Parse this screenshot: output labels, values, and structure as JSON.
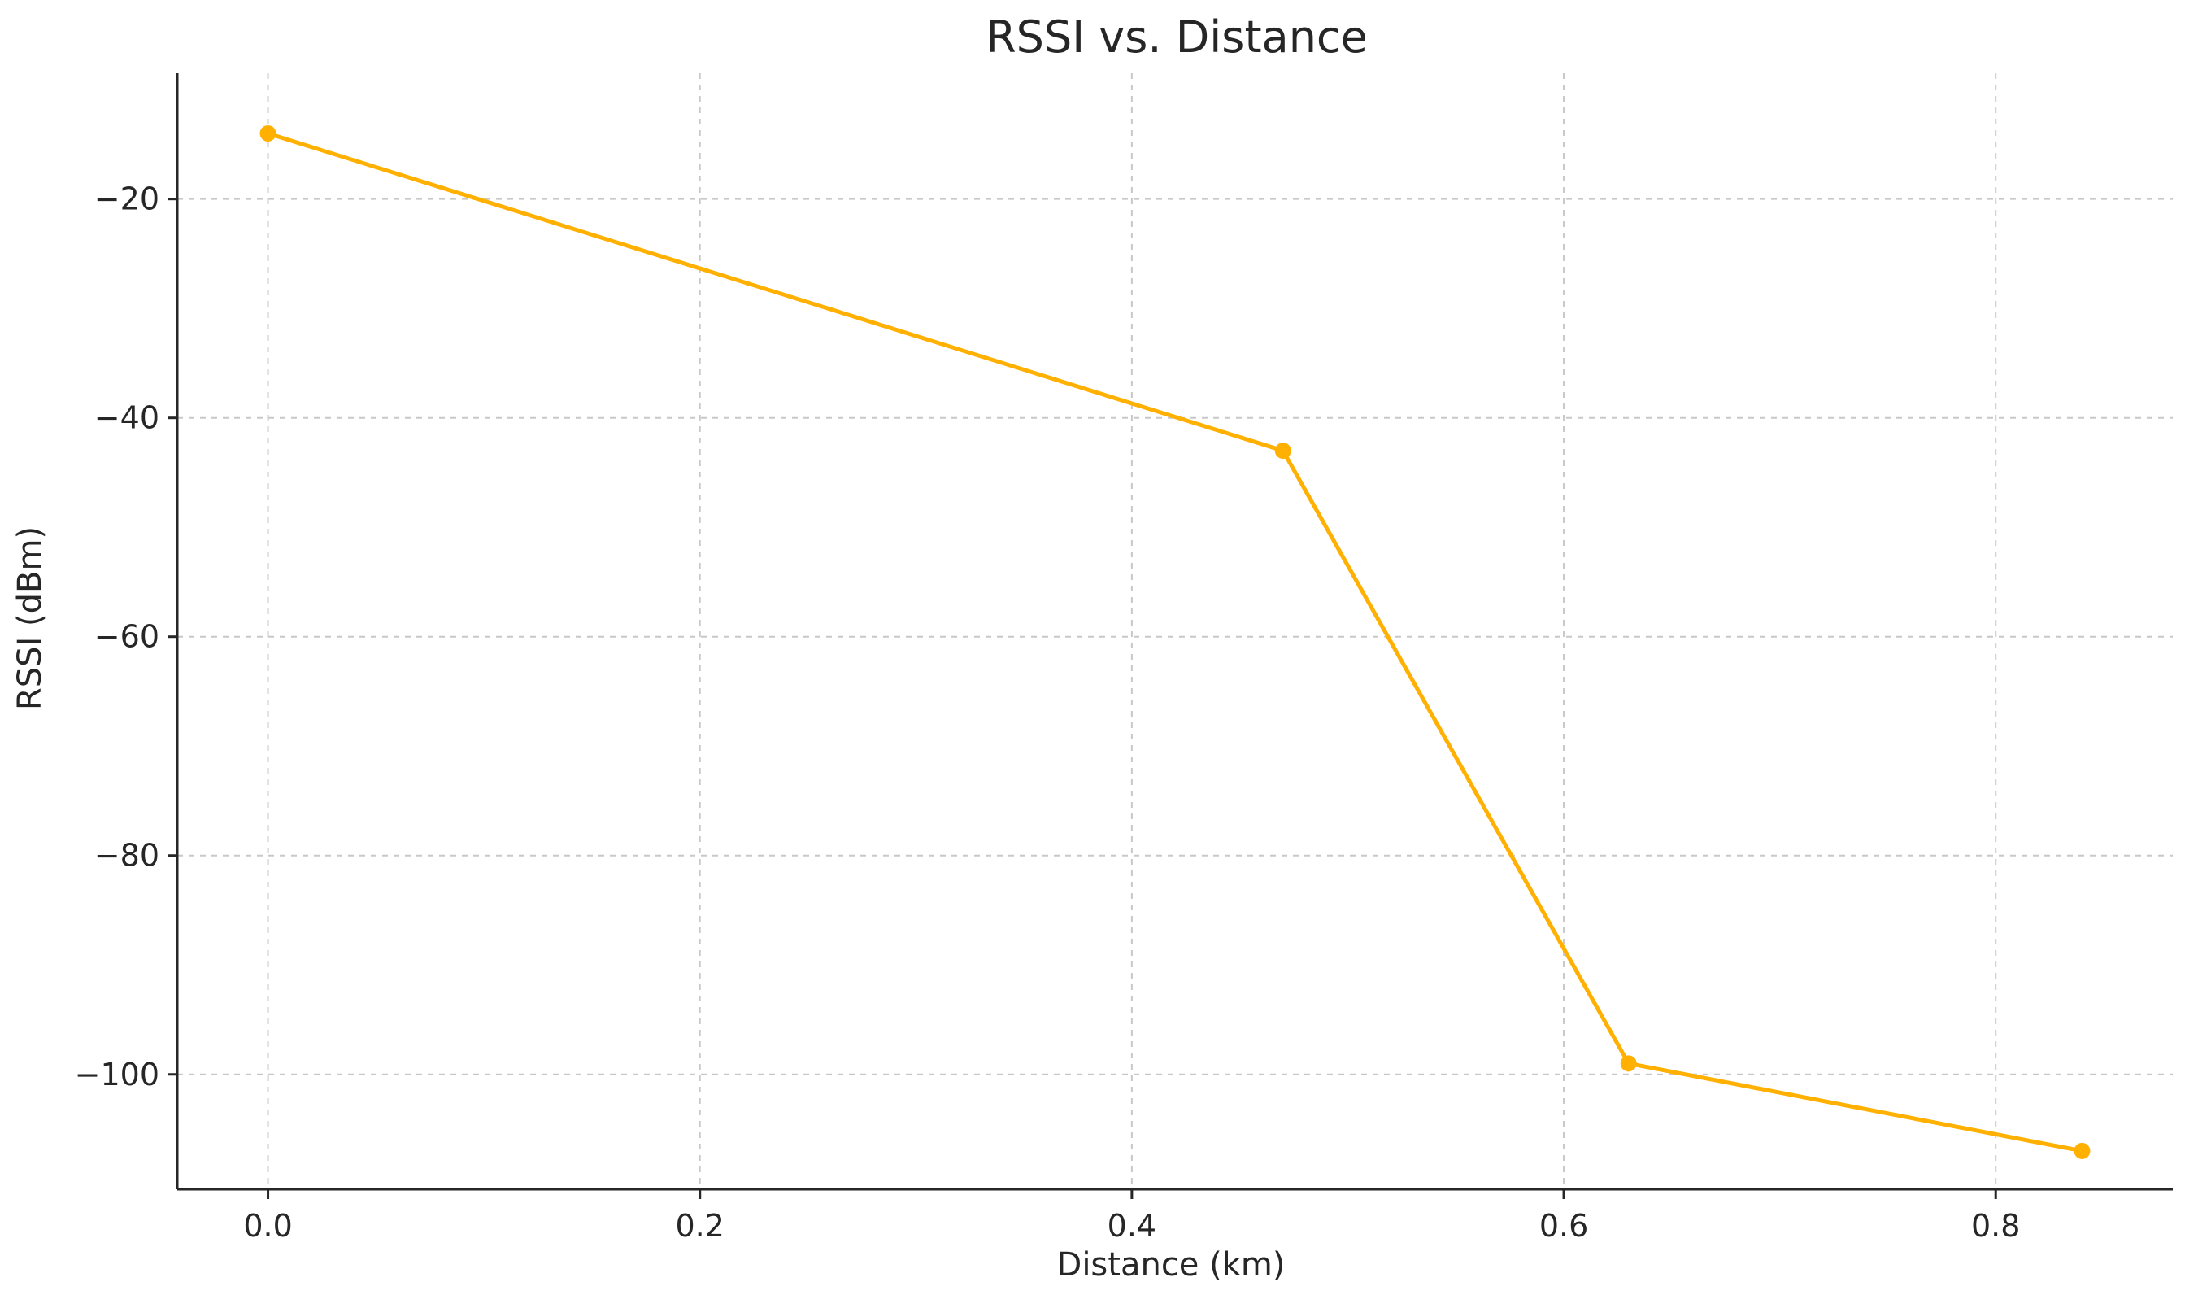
{
  "chart_data": {
    "type": "line",
    "title": "RSSI vs. Distance",
    "xlabel": "Distance (km)",
    "ylabel": "RSSI (dBm)",
    "xlim": [
      -0.042,
      0.882
    ],
    "ylim": [
      -110.5,
      -8.5
    ],
    "x_ticks": [
      {
        "value": 0.0,
        "label": "0.0"
      },
      {
        "value": 0.2,
        "label": "0.2"
      },
      {
        "value": 0.4,
        "label": "0.4"
      },
      {
        "value": 0.6,
        "label": "0.6"
      },
      {
        "value": 0.8,
        "label": "0.8"
      }
    ],
    "y_ticks": [
      {
        "value": -20,
        "label": "−20"
      },
      {
        "value": -40,
        "label": "−40"
      },
      {
        "value": -60,
        "label": "−60"
      },
      {
        "value": -80,
        "label": "−80"
      },
      {
        "value": -100,
        "label": "−100"
      }
    ],
    "grid": true,
    "series": [
      {
        "color": "#FFB000",
        "marker": "circle",
        "x": [
          0.0,
          0.47,
          0.63,
          0.84
        ],
        "y": [
          -14,
          -43,
          -99,
          -107
        ]
      }
    ]
  }
}
